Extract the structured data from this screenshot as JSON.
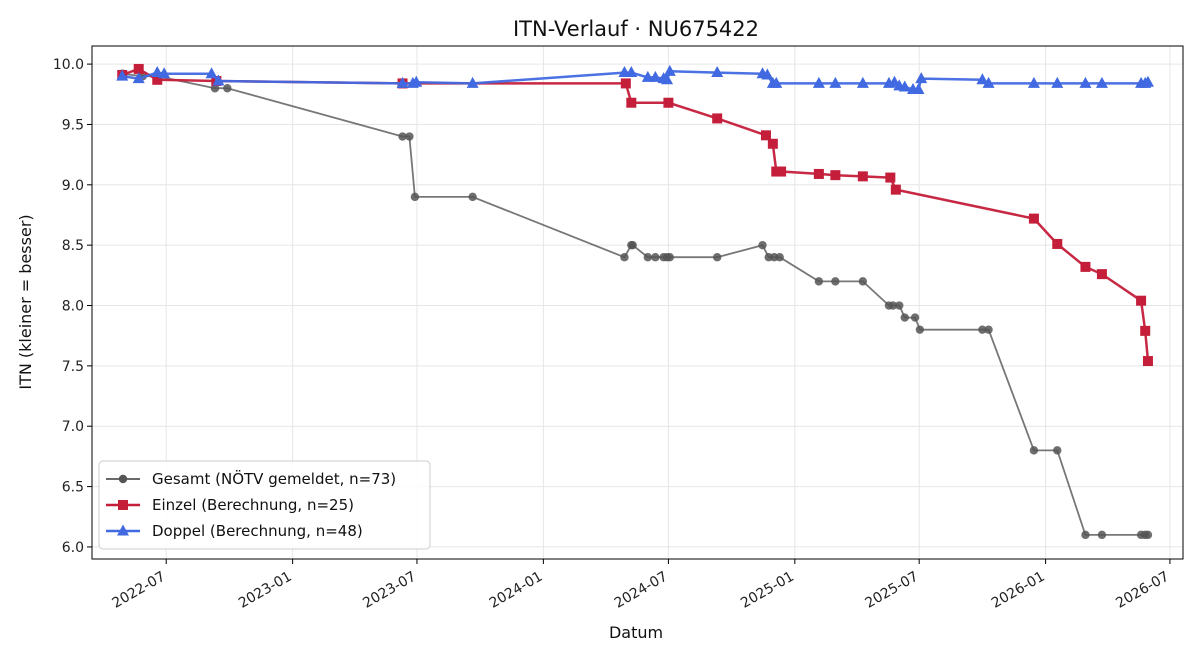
{
  "chart_data": {
    "type": "line",
    "title": "ITN-Verlauf · NU675422",
    "xlabel": "Datum",
    "ylabel": "ITN  (kleiner = besser)",
    "x_domain": [
      "2022-03-15",
      "2026-07-20"
    ],
    "ylim": [
      5.9,
      10.15
    ],
    "x_ticks": [
      "2022-07-01",
      "2023-01-01",
      "2023-07-01",
      "2024-01-01",
      "2024-07-01",
      "2025-01-01",
      "2025-07-01",
      "2026-01-01",
      "2026-07-01"
    ],
    "x_tick_labels": [
      "2022-07",
      "2023-01",
      "2023-07",
      "2024-01",
      "2024-07",
      "2025-01",
      "2025-07",
      "2026-01",
      "2026-07"
    ],
    "y_ticks": [
      6.0,
      6.5,
      7.0,
      7.5,
      8.0,
      8.5,
      9.0,
      9.5,
      10.0
    ],
    "y_tick_labels": [
      "6.0",
      "6.5",
      "7.0",
      "7.5",
      "8.0",
      "8.5",
      "9.0",
      "9.5",
      "10.0"
    ],
    "grid": true,
    "legend_position": "lower-left",
    "series": [
      {
        "name": "Gesamt (NÖTV gemeldet, n=73)",
        "color": "#555555",
        "marker": "circle",
        "points": [
          [
            "2022-04-28",
            9.92
          ],
          [
            "2022-05-28",
            9.9
          ],
          [
            "2022-06-18",
            9.9
          ],
          [
            "2022-09-10",
            9.8
          ],
          [
            "2022-09-28",
            9.8
          ],
          [
            "2023-06-10",
            9.4
          ],
          [
            "2023-06-20",
            9.4
          ],
          [
            "2023-06-28",
            8.9
          ],
          [
            "2023-09-20",
            8.9
          ],
          [
            "2024-04-28",
            8.4
          ],
          [
            "2024-05-08",
            8.5
          ],
          [
            "2024-05-10",
            8.5
          ],
          [
            "2024-06-01",
            8.4
          ],
          [
            "2024-06-12",
            8.4
          ],
          [
            "2024-06-24",
            8.4
          ],
          [
            "2024-06-29",
            8.4
          ],
          [
            "2024-07-03",
            8.4
          ],
          [
            "2024-09-10",
            8.4
          ],
          [
            "2024-11-15",
            8.5
          ],
          [
            "2024-11-24",
            8.4
          ],
          [
            "2024-12-02",
            8.4
          ],
          [
            "2024-12-10",
            8.4
          ],
          [
            "2025-02-05",
            8.2
          ],
          [
            "2025-03-01",
            8.2
          ],
          [
            "2025-04-10",
            8.2
          ],
          [
            "2025-05-18",
            8.0
          ],
          [
            "2025-05-24",
            8.0
          ],
          [
            "2025-06-02",
            8.0
          ],
          [
            "2025-06-10",
            7.9
          ],
          [
            "2025-06-25",
            7.9
          ],
          [
            "2025-07-02",
            7.8
          ],
          [
            "2025-10-01",
            7.8
          ],
          [
            "2025-10-10",
            7.8
          ],
          [
            "2025-12-15",
            6.8
          ],
          [
            "2026-01-18",
            6.8
          ],
          [
            "2026-02-28",
            6.1
          ],
          [
            "2026-03-24",
            6.1
          ],
          [
            "2026-05-20",
            6.1
          ],
          [
            "2026-05-26",
            6.1
          ],
          [
            "2026-05-30",
            6.1
          ]
        ]
      },
      {
        "name": "Einzel (Berechnung, n=25)",
        "color": "#c41e3a",
        "marker": "square",
        "points": [
          [
            "2022-04-28",
            9.91
          ],
          [
            "2022-05-22",
            9.96
          ],
          [
            "2022-06-18",
            9.87
          ],
          [
            "2022-09-12",
            9.86
          ],
          [
            "2023-06-10",
            9.84
          ],
          [
            "2024-04-30",
            9.84
          ],
          [
            "2024-05-08",
            9.68
          ],
          [
            "2024-07-01",
            9.68
          ],
          [
            "2024-09-10",
            9.55
          ],
          [
            "2024-11-20",
            9.41
          ],
          [
            "2024-11-30",
            9.34
          ],
          [
            "2024-12-05",
            9.11
          ],
          [
            "2024-12-12",
            9.11
          ],
          [
            "2025-02-05",
            9.09
          ],
          [
            "2025-03-01",
            9.08
          ],
          [
            "2025-04-10",
            9.07
          ],
          [
            "2025-05-20",
            9.06
          ],
          [
            "2025-05-28",
            8.96
          ],
          [
            "2025-12-15",
            8.72
          ],
          [
            "2026-01-18",
            8.51
          ],
          [
            "2026-02-28",
            8.32
          ],
          [
            "2026-03-24",
            8.26
          ],
          [
            "2026-05-20",
            8.04
          ],
          [
            "2026-05-26",
            7.79
          ],
          [
            "2026-05-30",
            7.54
          ]
        ]
      },
      {
        "name": "Doppel (Berechnung, n=48)",
        "color": "#4169e1",
        "marker": "triangle",
        "points": [
          [
            "2022-04-28",
            9.9
          ],
          [
            "2022-05-22",
            9.88
          ],
          [
            "2022-06-18",
            9.93
          ],
          [
            "2022-06-28",
            9.92
          ],
          [
            "2022-09-05",
            9.92
          ],
          [
            "2022-09-15",
            9.86
          ],
          [
            "2023-06-10",
            9.84
          ],
          [
            "2023-06-25",
            9.84
          ],
          [
            "2023-06-30",
            9.85
          ],
          [
            "2023-09-20",
            9.84
          ],
          [
            "2024-04-28",
            9.93
          ],
          [
            "2024-05-08",
            9.93
          ],
          [
            "2024-06-01",
            9.89
          ],
          [
            "2024-06-12",
            9.89
          ],
          [
            "2024-06-24",
            9.88
          ],
          [
            "2024-06-29",
            9.87
          ],
          [
            "2024-07-03",
            9.94
          ],
          [
            "2024-09-10",
            9.93
          ],
          [
            "2024-11-15",
            9.92
          ],
          [
            "2024-11-22",
            9.91
          ],
          [
            "2024-11-30",
            9.84
          ],
          [
            "2024-12-05",
            9.84
          ],
          [
            "2025-02-05",
            9.84
          ],
          [
            "2025-03-01",
            9.84
          ],
          [
            "2025-04-10",
            9.84
          ],
          [
            "2025-05-18",
            9.84
          ],
          [
            "2025-05-26",
            9.85
          ],
          [
            "2025-06-02",
            9.82
          ],
          [
            "2025-06-10",
            9.81
          ],
          [
            "2025-06-22",
            9.79
          ],
          [
            "2025-06-30",
            9.79
          ],
          [
            "2025-07-04",
            9.88
          ],
          [
            "2025-10-01",
            9.87
          ],
          [
            "2025-10-10",
            9.84
          ],
          [
            "2025-12-15",
            9.84
          ],
          [
            "2026-01-18",
            9.84
          ],
          [
            "2026-02-28",
            9.84
          ],
          [
            "2026-03-24",
            9.84
          ],
          [
            "2026-05-20",
            9.84
          ],
          [
            "2026-05-26",
            9.84
          ],
          [
            "2026-05-30",
            9.85
          ]
        ]
      }
    ]
  }
}
